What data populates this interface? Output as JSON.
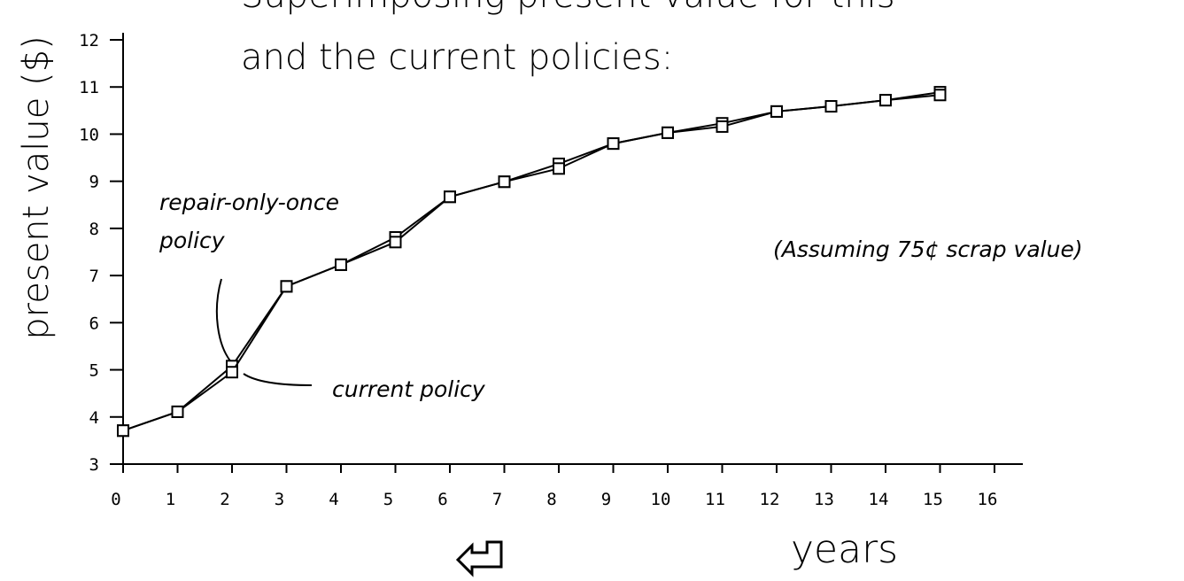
{
  "chart_data": {
    "type": "line",
    "title": [
      "Superimposing present value for this",
      "and the current policies:"
    ],
    "x_label": "years",
    "y_label": "present value ($)",
    "note": "(Assuming 75¢ scrap value)",
    "x": [
      0,
      1,
      2,
      3,
      4,
      5,
      6,
      7,
      8,
      9,
      10,
      11,
      12,
      13,
      14,
      15
    ],
    "series": [
      {
        "label": [
          "repair-only-once",
          "policy"
        ],
        "color": "#000000",
        "values": [
          3.71,
          4.11,
          5.08,
          6.77,
          7.23,
          7.81,
          8.67,
          8.99,
          9.37,
          9.8,
          10.03,
          10.23,
          10.48,
          10.59,
          10.72,
          10.89
        ]
      },
      {
        "label": [
          "current policy"
        ],
        "color": "#000000",
        "values": [
          3.71,
          4.11,
          4.95,
          6.77,
          7.23,
          7.71,
          8.67,
          8.99,
          9.27,
          9.8,
          10.03,
          10.16,
          10.48,
          10.59,
          10.72,
          10.83
        ]
      }
    ],
    "xlim": [
      0,
      16
    ],
    "ylim": [
      3,
      12
    ],
    "xticks": [
      0,
      1,
      2,
      3,
      4,
      5,
      6,
      7,
      8,
      9,
      10,
      11,
      12,
      13,
      14,
      15,
      16
    ],
    "yticks": [
      3,
      4,
      5,
      6,
      7,
      8,
      9,
      10,
      11,
      12
    ]
  }
}
